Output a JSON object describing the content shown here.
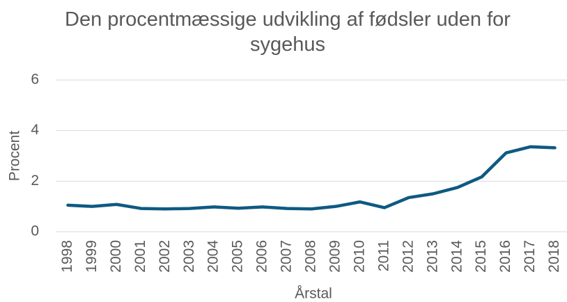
{
  "chart_data": {
    "type": "line",
    "title": "Den procentmæssige udvikling af fødsler uden for sygehus",
    "x_label": "Årstal",
    "y_label": "Procent",
    "categories": [
      "1998",
      "1999",
      "2000",
      "2001",
      "2002",
      "2003",
      "2004",
      "2005",
      "2006",
      "2007",
      "2008",
      "2009",
      "2010",
      "2011",
      "2012",
      "2013",
      "2014",
      "2015",
      "2016",
      "2017",
      "2018"
    ],
    "series": [
      {
        "name": "Procent",
        "color": "#0e5a82",
        "values": [
          1.05,
          1.0,
          1.08,
          0.92,
          0.9,
          0.92,
          0.98,
          0.93,
          0.98,
          0.92,
          0.9,
          1.0,
          1.18,
          0.95,
          1.35,
          1.5,
          1.75,
          2.17,
          3.12,
          3.36,
          3.32
        ]
      }
    ],
    "ylim": [
      0,
      6
    ],
    "yticks": [
      0,
      2,
      4,
      6
    ],
    "grid": true
  }
}
